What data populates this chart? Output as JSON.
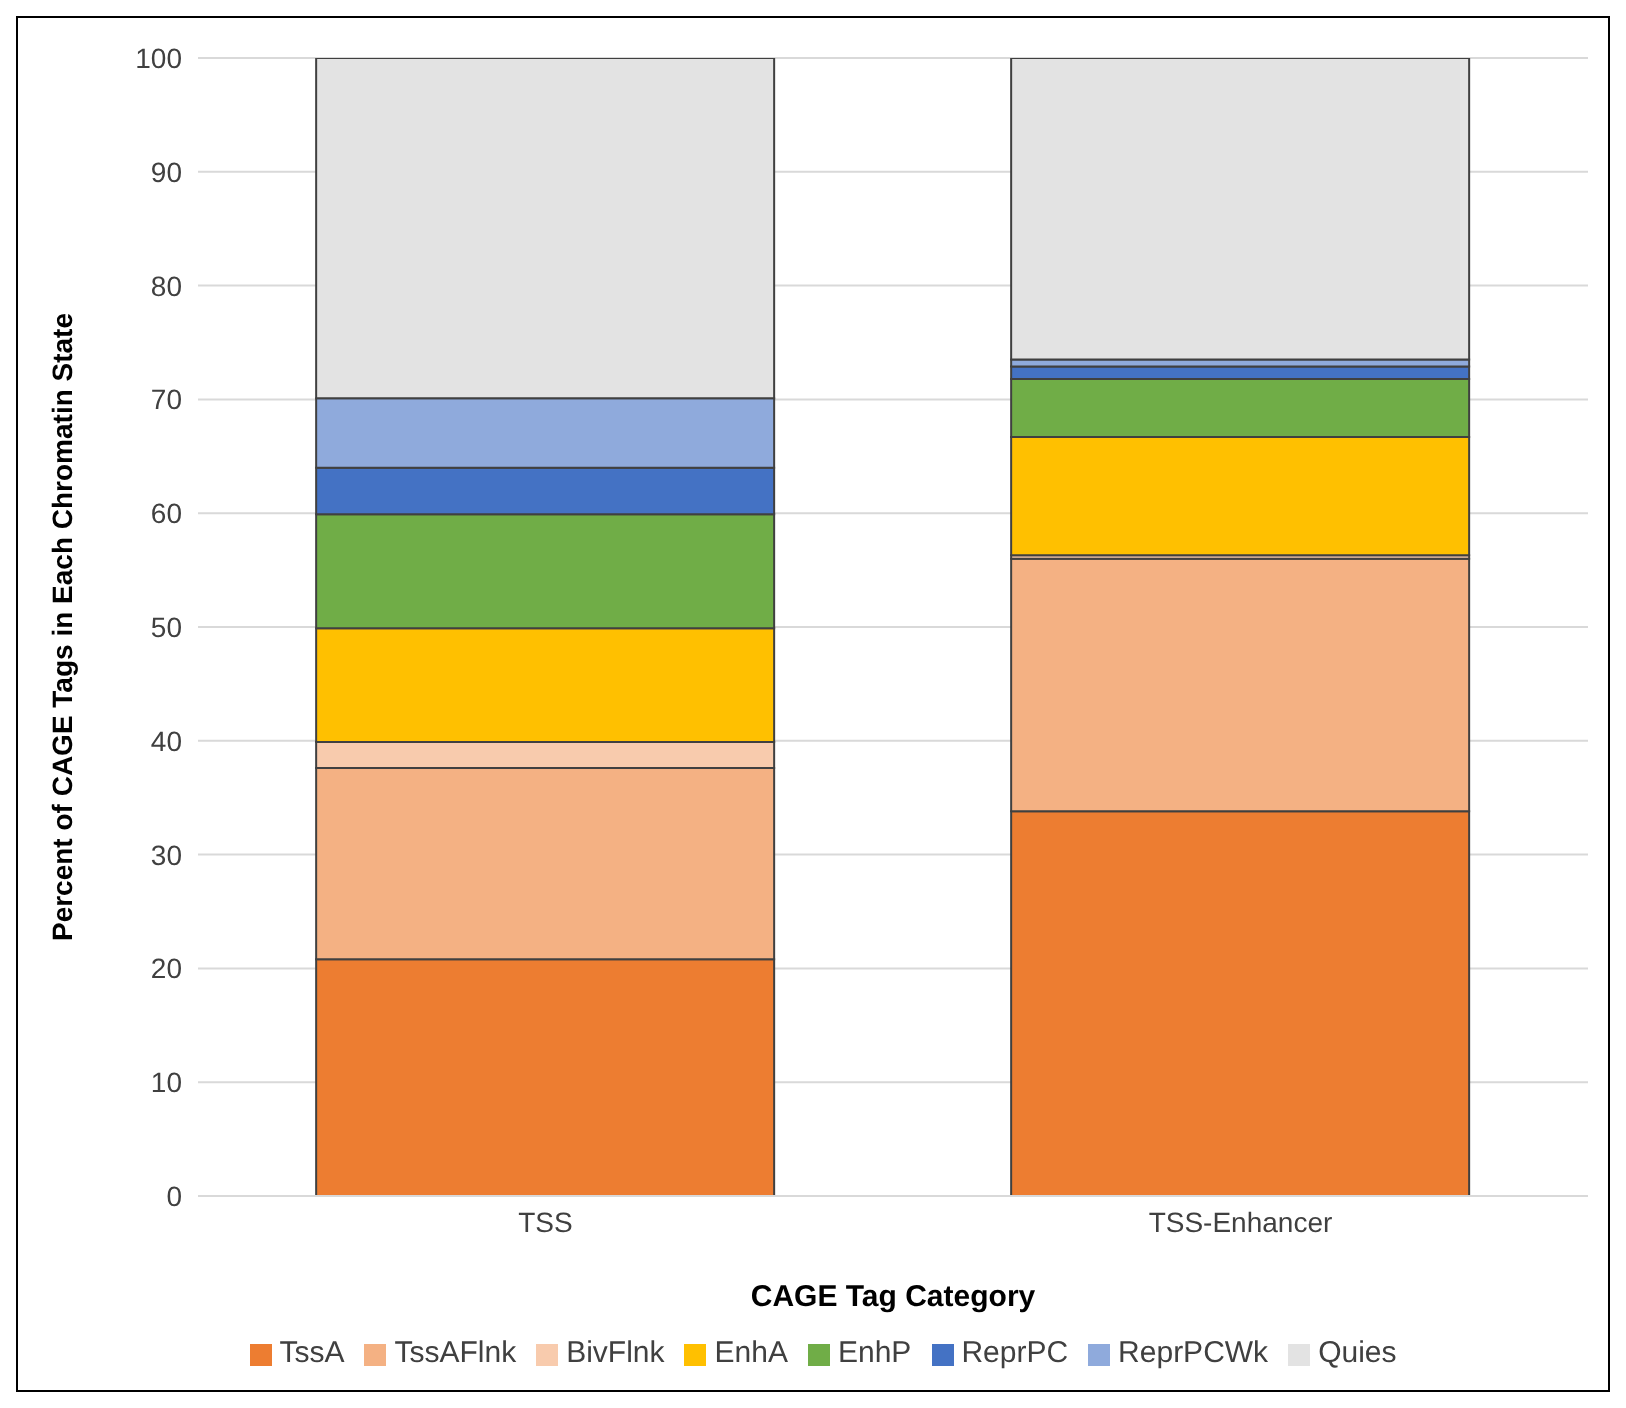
{
  "chart_data": {
    "type": "bar",
    "stacked": true,
    "xlabel": "CAGE Tag Category",
    "ylabel": "Percent of CAGE Tags in Each Chromatin State",
    "categories": [
      "TSS",
      "TSS-Enhancer"
    ],
    "series": [
      {
        "name": "TssA",
        "color": "#ed7d31",
        "values": [
          20.8,
          33.8
        ]
      },
      {
        "name": "TssAFlnk",
        "color": "#f4b183",
        "values": [
          16.8,
          22.2
        ]
      },
      {
        "name": "BivFlnk",
        "color": "#f8cbad",
        "values": [
          2.3,
          0.3
        ]
      },
      {
        "name": "EnhA",
        "color": "#ffc000",
        "values": [
          10,
          10.4
        ]
      },
      {
        "name": "EnhP",
        "color": "#70ad47",
        "values": [
          10,
          5.1
        ]
      },
      {
        "name": "ReprPC",
        "color": "#4472c4",
        "values": [
          4.1,
          1.1
        ]
      },
      {
        "name": "ReprPCWk",
        "color": "#8faadc",
        "values": [
          6.1,
          0.6
        ]
      },
      {
        "name": "Quies",
        "color": "#e3e3e3",
        "values": [
          29.9,
          26.5
        ]
      }
    ],
    "ylim": [
      0,
      100
    ],
    "yticks": [
      0,
      10,
      20,
      30,
      40,
      50,
      60,
      70,
      80,
      90,
      100
    ],
    "grid": "y",
    "legend": "bottom"
  }
}
